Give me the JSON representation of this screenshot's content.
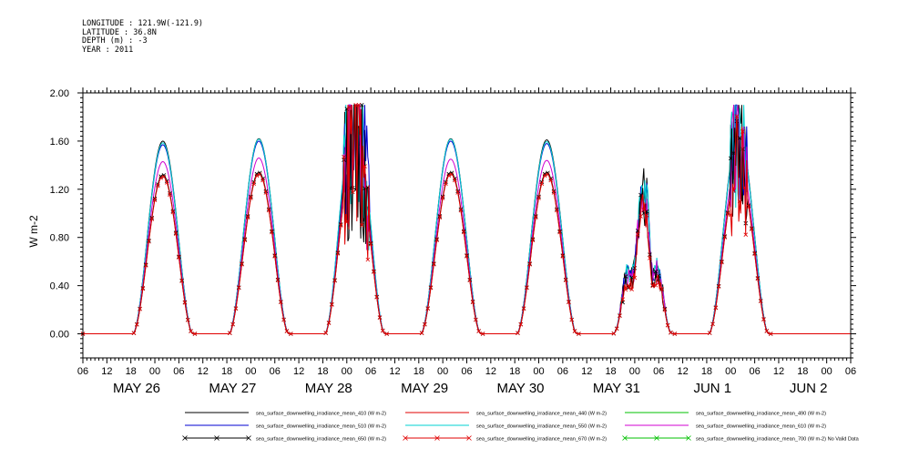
{
  "header": {
    "longitude": "LONGITUDE : 121.9W(-121.9)",
    "latitude": "LATITUDE : 36.8N",
    "depth": "DEPTH (m) : -3",
    "year": "YEAR : 2011"
  },
  "chart_data": {
    "type": "line",
    "ylabel": "W m-2",
    "ylim": [
      -0.2,
      2.0
    ],
    "yticks": [
      "0.00",
      "0.40",
      "0.80",
      "1.20",
      "1.60",
      "2.00"
    ],
    "x_hour_ticks": [
      "06",
      "12",
      "18",
      "00",
      "06",
      "12",
      "18",
      "00",
      "06",
      "12",
      "18",
      "00",
      "06",
      "12",
      "18",
      "00",
      "06",
      "12",
      "18",
      "00",
      "06",
      "12",
      "18",
      "00",
      "06",
      "12",
      "18",
      "00",
      "06",
      "12",
      "18",
      "00",
      "06"
    ],
    "x_day_labels": [
      "MAY 26",
      "MAY 27",
      "MAY 28",
      "MAY 29",
      "MAY 30",
      "MAY 31",
      "JUN  1",
      "JUN  2"
    ],
    "x_range_hours_from_may26_06": [
      0,
      192
    ],
    "daily_peaks": {
      "412": [
        1.6,
        1.62,
        1.75,
        1.62,
        1.61,
        1.47,
        1.68
      ],
      "510": [
        1.57,
        1.6,
        1.86,
        1.6,
        1.58,
        1.45,
        1.65
      ],
      "555": [
        1.43,
        1.46,
        1.65,
        1.45,
        1.44,
        1.35,
        1.48
      ],
      "670": [
        1.32,
        1.34,
        1.55,
        1.34,
        1.34,
        1.25,
        1.38
      ]
    },
    "legend": [
      {
        "label": "sea_surface_downwelling_irradiance_mean_410 (W m-2)",
        "color": "#000000",
        "marker": "none"
      },
      {
        "label": "sea_surface_downwelling_irradiance_mean_440 (W m-2)",
        "color": "#e00000",
        "marker": "none"
      },
      {
        "label": "sea_surface_downwelling_irradiance_mean_490 (W m-2)",
        "color": "#00c000",
        "marker": "none"
      },
      {
        "label": "sea_surface_downwelling_irradiance_mean_510 (W m-2)",
        "color": "#0000d0",
        "marker": "none"
      },
      {
        "label": "sea_surface_downwelling_irradiance_mean_550 (W m-2)",
        "color": "#00d0d0",
        "marker": "none"
      },
      {
        "label": "sea_surface_downwelling_irradiance_mean_610 (W m-2)",
        "color": "#d000d0",
        "marker": "none"
      },
      {
        "label": "sea_surface_downwelling_irradiance_mean_650 (W m-2)",
        "color": "#000000",
        "marker": "x"
      },
      {
        "label": "sea_surface_downwelling_irradiance_mean_670 (W m-2)",
        "color": "#e00000",
        "marker": "x"
      },
      {
        "label": "sea_surface_downwelling_irradiance_mean_700 (W m-2) No Valid Data",
        "color": "#00c000",
        "marker": "x"
      }
    ],
    "grid": false
  }
}
